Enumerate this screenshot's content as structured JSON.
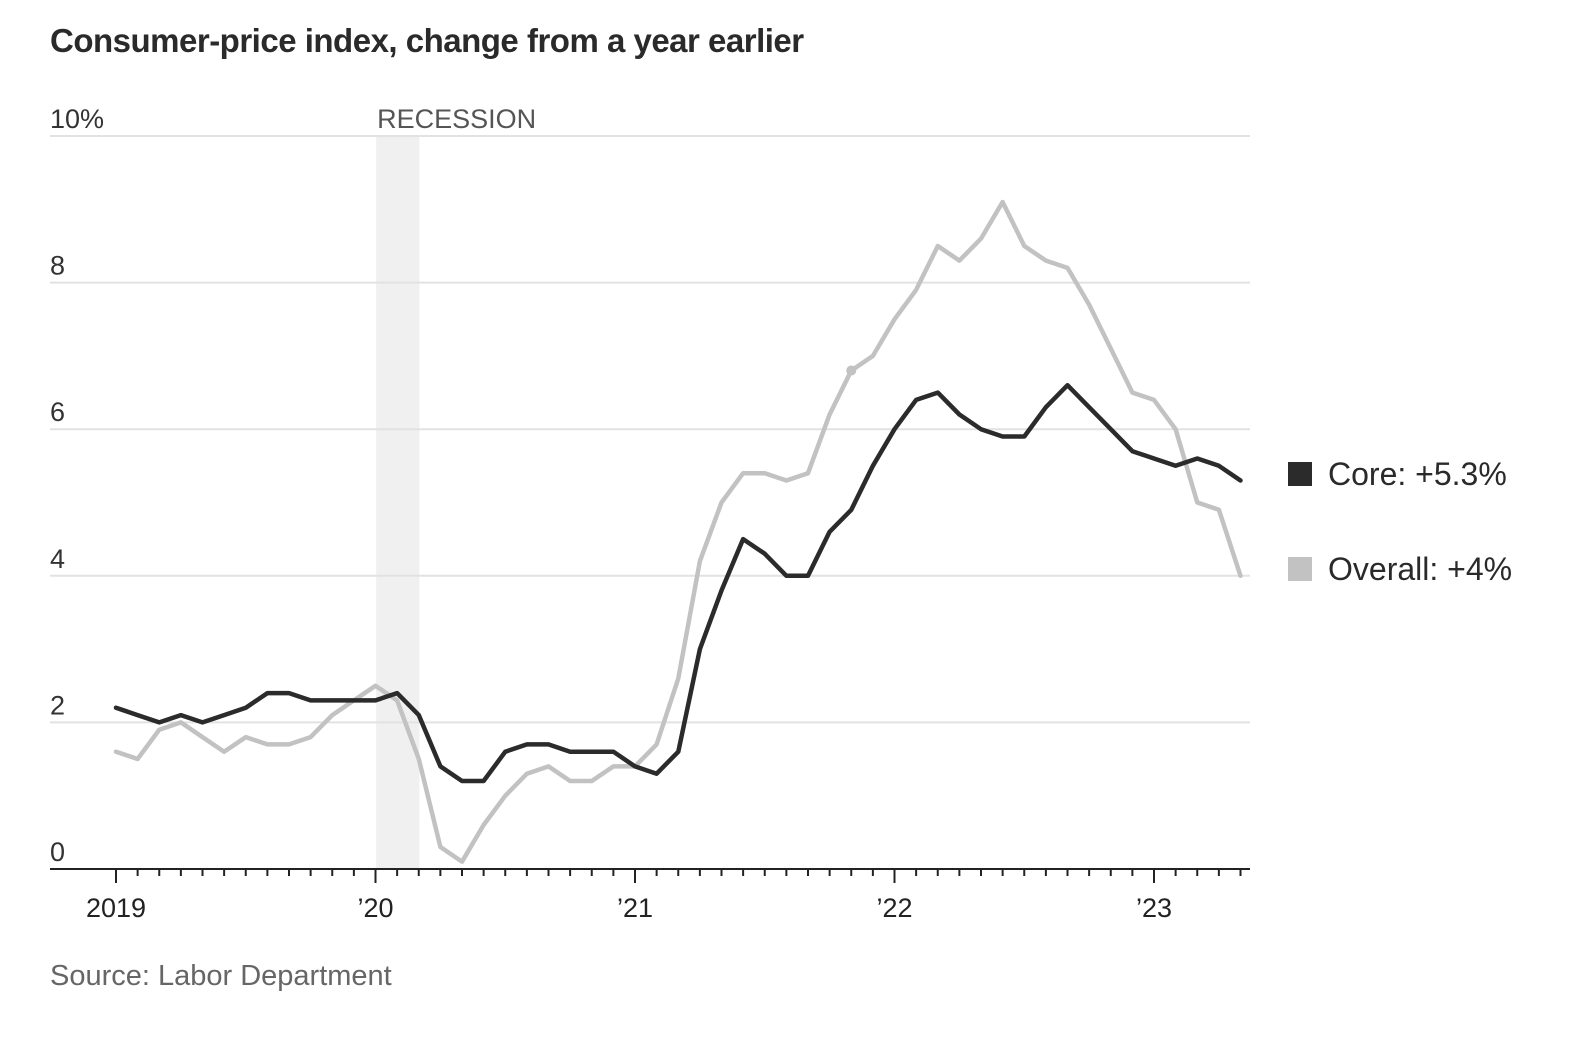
{
  "chart_data": {
    "type": "line",
    "title": "Consumer-price index, change from a year earlier",
    "source": "Source: Labor Department",
    "ylim": [
      0,
      10
    ],
    "y_ticks": [
      {
        "value": 0,
        "label": "0"
      },
      {
        "value": 2,
        "label": "2"
      },
      {
        "value": 4,
        "label": "4"
      },
      {
        "value": 6,
        "label": "6"
      },
      {
        "value": 8,
        "label": "8"
      },
      {
        "value": 10,
        "label": "10%"
      }
    ],
    "x_range": [
      "2019-01",
      "2023-05"
    ],
    "x_ticks": [
      {
        "value": "2019-01",
        "label": "2019"
      },
      {
        "value": "2020-01",
        "label": "’20"
      },
      {
        "value": "2021-01",
        "label": "’21"
      },
      {
        "value": "2022-01",
        "label": "’22"
      },
      {
        "value": "2023-01",
        "label": "’23"
      }
    ],
    "grid": true,
    "recession": {
      "label": "RECESSION",
      "start": "2020-02",
      "end": "2020-04"
    },
    "x": [
      "2019-01",
      "2019-02",
      "2019-03",
      "2019-04",
      "2019-05",
      "2019-06",
      "2019-07",
      "2019-08",
      "2019-09",
      "2019-10",
      "2019-11",
      "2019-12",
      "2020-01",
      "2020-02",
      "2020-03",
      "2020-04",
      "2020-05",
      "2020-06",
      "2020-07",
      "2020-08",
      "2020-09",
      "2020-10",
      "2020-11",
      "2020-12",
      "2021-01",
      "2021-02",
      "2021-03",
      "2021-04",
      "2021-05",
      "2021-06",
      "2021-07",
      "2021-08",
      "2021-09",
      "2021-10",
      "2021-11",
      "2021-12",
      "2022-01",
      "2022-02",
      "2022-03",
      "2022-04",
      "2022-05",
      "2022-06",
      "2022-07",
      "2022-08",
      "2022-09",
      "2022-10",
      "2022-11",
      "2022-12",
      "2023-01",
      "2023-02",
      "2023-03",
      "2023-04",
      "2023-05"
    ],
    "series": [
      {
        "name": "Overall",
        "legend_label": "Overall: +4%",
        "color": "#c2c2c2",
        "values": [
          1.6,
          1.5,
          1.9,
          2.0,
          1.8,
          1.6,
          1.8,
          1.7,
          1.7,
          1.8,
          2.1,
          2.3,
          2.5,
          2.3,
          1.5,
          0.3,
          0.1,
          0.6,
          1.0,
          1.3,
          1.4,
          1.2,
          1.2,
          1.4,
          1.4,
          1.7,
          2.6,
          4.2,
          5.0,
          5.4,
          5.4,
          5.3,
          5.4,
          6.2,
          6.8,
          7.0,
          7.5,
          7.9,
          8.5,
          8.3,
          8.6,
          9.1,
          8.5,
          8.3,
          8.2,
          7.7,
          7.1,
          6.5,
          6.4,
          6.0,
          5.0,
          4.9,
          4.0
        ]
      },
      {
        "name": "Core",
        "legend_label": "Core: +5.3%",
        "color": "#2b2b2b",
        "values": [
          2.2,
          2.1,
          2.0,
          2.1,
          2.0,
          2.1,
          2.2,
          2.4,
          2.4,
          2.3,
          2.3,
          2.3,
          2.3,
          2.4,
          2.1,
          1.4,
          1.2,
          1.2,
          1.6,
          1.7,
          1.7,
          1.6,
          1.6,
          1.6,
          1.4,
          1.3,
          1.6,
          3.0,
          3.8,
          4.5,
          4.3,
          4.0,
          4.0,
          4.6,
          4.9,
          5.5,
          6.0,
          6.4,
          6.5,
          6.2,
          6.0,
          5.9,
          5.9,
          6.3,
          6.6,
          6.3,
          6.0,
          5.7,
          5.6,
          5.5,
          5.6,
          5.5,
          5.3
        ]
      }
    ],
    "highlight_point": {
      "x": "2021-11",
      "y": 6.8,
      "series": "Overall"
    }
  }
}
